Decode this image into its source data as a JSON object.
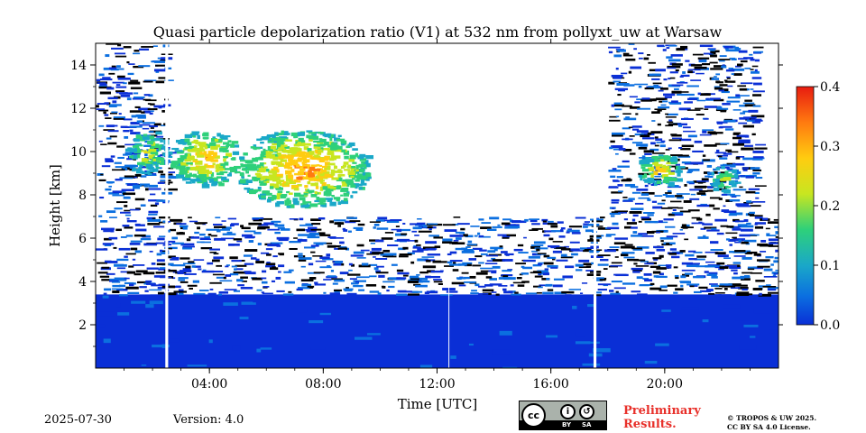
{
  "chart_data": {
    "type": "heatmap",
    "title": "Quasi particle depolarization ratio (V1) at 532 nm from pollyxt_uw at Warsaw",
    "xlabel": "Time [UTC]",
    "ylabel": "Height [km]",
    "x_range_hours": [
      0,
      24
    ],
    "y_range_km": [
      0,
      15
    ],
    "x_ticks": [
      {
        "hour": 4,
        "label": "04:00"
      },
      {
        "hour": 8,
        "label": "08:00"
      },
      {
        "hour": 12,
        "label": "12:00"
      },
      {
        "hour": 16,
        "label": "16:00"
      },
      {
        "hour": 20,
        "label": "20:00"
      }
    ],
    "y_ticks": [
      {
        "km": 2,
        "label": "2"
      },
      {
        "km": 4,
        "label": "4"
      },
      {
        "km": 6,
        "label": "6"
      },
      {
        "km": 8,
        "label": "8"
      },
      {
        "km": 10,
        "label": "10"
      },
      {
        "km": 12,
        "label": "12"
      },
      {
        "km": 14,
        "label": "14"
      }
    ],
    "colorbar": {
      "range": [
        0.0,
        0.4
      ],
      "ticks": [
        {
          "value": 0.0,
          "label": "0.0"
        },
        {
          "value": 0.1,
          "label": "0.1"
        },
        {
          "value": 0.2,
          "label": "0.2"
        },
        {
          "value": 0.3,
          "label": "0.3"
        },
        {
          "value": 0.4,
          "label": "0.4"
        }
      ],
      "colors": [
        "#0a2fd6",
        "#0b6fe0",
        "#1aa8c8",
        "#2ed07a",
        "#c8e620",
        "#ffcc10",
        "#ff7a10",
        "#e81c10"
      ]
    },
    "regions": [
      {
        "kind": "aerosol_layer",
        "t": [
          0.0,
          24.0
        ],
        "h": [
          0.0,
          3.4
        ],
        "value": 0.02
      },
      {
        "kind": "noise_low",
        "t": [
          0.0,
          24.0
        ],
        "h": [
          3.4,
          7.0
        ],
        "value": 0.03
      },
      {
        "kind": "noise_high",
        "t": [
          0.0,
          2.5
        ],
        "h": [
          7.0,
          15.0
        ],
        "value": 0.03
      },
      {
        "kind": "noise_high",
        "t": [
          18.0,
          23.2
        ],
        "h": [
          7.0,
          15.0
        ],
        "value": 0.03
      },
      {
        "kind": "cirrus",
        "t": [
          1.0,
          2.5
        ],
        "h": [
          9.0,
          11.0
        ],
        "value": 0.25
      },
      {
        "kind": "cirrus",
        "t": [
          2.6,
          5.0
        ],
        "h": [
          8.5,
          11.0
        ],
        "value": 0.3
      },
      {
        "kind": "cirrus",
        "t": [
          5.0,
          9.5
        ],
        "h": [
          7.5,
          11.0
        ],
        "value": 0.32
      },
      {
        "kind": "cirrus",
        "t": [
          19.0,
          20.5
        ],
        "h": [
          8.5,
          10.0
        ],
        "value": 0.28
      },
      {
        "kind": "cirrus",
        "t": [
          21.5,
          22.5
        ],
        "h": [
          8.2,
          9.5
        ],
        "value": 0.22
      },
      {
        "kind": "no_data",
        "t": [
          2.45,
          2.55
        ],
        "h": [
          0.0,
          15.0
        ],
        "value": null
      },
      {
        "kind": "no_data",
        "t": [
          17.5,
          17.6
        ],
        "h": [
          0.0,
          15.0
        ],
        "value": null
      },
      {
        "kind": "no_data",
        "t": [
          12.4,
          12.42
        ],
        "h": [
          0.0,
          3.8
        ],
        "value": null
      }
    ]
  },
  "footer": {
    "date": "2025-07-30",
    "version": "Version: 4.0",
    "preliminary_line1": "Preliminary",
    "preliminary_line2": "Results.",
    "copyright_line1": "© TROPOS & UW 2025.",
    "copyright_line2": "CC BY SA 4.0 License.",
    "license_badge": {
      "main": "cc",
      "by": "BY",
      "sa": "SA"
    }
  }
}
